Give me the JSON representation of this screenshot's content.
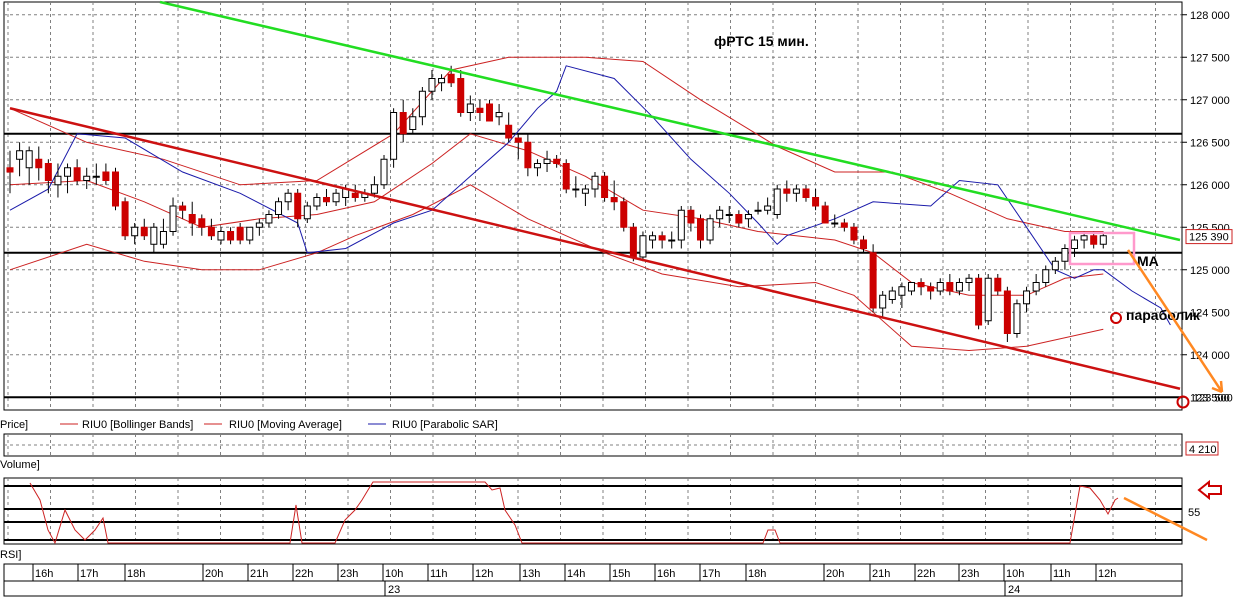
{
  "annotations": {
    "title": "фРТС   15 мин.",
    "ma_label": "МА",
    "parabolic_label": "параболик"
  },
  "legend": {
    "price": "Price]",
    "bollinger": "RIU0 [Bollinger Bands]",
    "moving_average": "RIU0 [Moving Average]",
    "parabolic_sar": "RIU0 [Parabolic SAR]",
    "volume": "Volume]",
    "rsi": "RSI]"
  },
  "colors": {
    "bull_candle": "#ffffff",
    "bear_candle": "#cc0000",
    "bollinger": "#cc2222",
    "moving_average": "#cc2222",
    "parabolic_sar": "#1a1aaa",
    "green_trendline": "#22dd22",
    "red_channel": "#cc1111",
    "forecast_arrow": "#ff8822",
    "highlight_box": "#ff99cc",
    "grid": "#808080"
  },
  "chart_data": [
    {
      "type": "candlestick",
      "name": "price",
      "ylim": [
        123350,
        128150
      ],
      "y_ticks": [
        "128 000",
        "127 500",
        "127 000",
        "126 500",
        "126 000",
        "125 500",
        "125 000",
        "124 500",
        "124 000",
        "123 500"
      ],
      "last_price_label": "125 390",
      "level_label": "123 500",
      "horizontal_levels": [
        126600,
        125200,
        123500
      ],
      "candles": [
        {
          "o": 126200,
          "h": 126400,
          "l": 125900,
          "c": 126150
        },
        {
          "o": 126300,
          "h": 126500,
          "l": 126100,
          "c": 126400
        },
        {
          "o": 126200,
          "h": 126450,
          "l": 126000,
          "c": 126400
        },
        {
          "o": 126300,
          "h": 126450,
          "l": 126050,
          "c": 126200
        },
        {
          "o": 126250,
          "h": 126300,
          "l": 125900,
          "c": 126050
        },
        {
          "o": 126000,
          "h": 126250,
          "l": 125850,
          "c": 126100
        },
        {
          "o": 126100,
          "h": 126250,
          "l": 125900,
          "c": 126200
        },
        {
          "o": 126200,
          "h": 126300,
          "l": 126000,
          "c": 126050
        },
        {
          "o": 126050,
          "h": 126200,
          "l": 125950,
          "c": 126100
        },
        {
          "o": 126100,
          "h": 126250,
          "l": 126000,
          "c": 126100
        },
        {
          "o": 126150,
          "h": 126250,
          "l": 126000,
          "c": 126050
        },
        {
          "o": 126150,
          "h": 126200,
          "l": 125700,
          "c": 125750
        },
        {
          "o": 125800,
          "h": 125850,
          "l": 125350,
          "c": 125400
        },
        {
          "o": 125400,
          "h": 125550,
          "l": 125300,
          "c": 125500
        },
        {
          "o": 125500,
          "h": 125600,
          "l": 125350,
          "c": 125400
        },
        {
          "o": 125300,
          "h": 125550,
          "l": 125200,
          "c": 125500
        },
        {
          "o": 125300,
          "h": 125600,
          "l": 125250,
          "c": 125450
        },
        {
          "o": 125450,
          "h": 125850,
          "l": 125400,
          "c": 125750
        },
        {
          "o": 125750,
          "h": 125800,
          "l": 125600,
          "c": 125700
        },
        {
          "o": 125650,
          "h": 125800,
          "l": 125400,
          "c": 125550
        },
        {
          "o": 125600,
          "h": 125650,
          "l": 125400,
          "c": 125500
        },
        {
          "o": 125500,
          "h": 125600,
          "l": 125350,
          "c": 125400
        },
        {
          "o": 125350,
          "h": 125500,
          "l": 125300,
          "c": 125450
        },
        {
          "o": 125450,
          "h": 125500,
          "l": 125300,
          "c": 125350
        },
        {
          "o": 125500,
          "h": 125550,
          "l": 125300,
          "c": 125350
        },
        {
          "o": 125350,
          "h": 125500,
          "l": 125300,
          "c": 125500
        },
        {
          "o": 125500,
          "h": 125600,
          "l": 125400,
          "c": 125550
        },
        {
          "o": 125550,
          "h": 125700,
          "l": 125500,
          "c": 125650
        },
        {
          "o": 125650,
          "h": 125850,
          "l": 125600,
          "c": 125800
        },
        {
          "o": 125800,
          "h": 125950,
          "l": 125700,
          "c": 125900
        },
        {
          "o": 125900,
          "h": 125950,
          "l": 125500,
          "c": 125600
        },
        {
          "o": 125600,
          "h": 125800,
          "l": 125550,
          "c": 125750
        },
        {
          "o": 125750,
          "h": 125900,
          "l": 125700,
          "c": 125850
        },
        {
          "o": 125850,
          "h": 125950,
          "l": 125750,
          "c": 125800
        },
        {
          "o": 125800,
          "h": 125950,
          "l": 125750,
          "c": 125900
        },
        {
          "o": 125850,
          "h": 126000,
          "l": 125750,
          "c": 125950
        },
        {
          "o": 125900,
          "h": 126000,
          "l": 125800,
          "c": 125850
        },
        {
          "o": 125850,
          "h": 125950,
          "l": 125800,
          "c": 125900
        },
        {
          "o": 125900,
          "h": 126100,
          "l": 125850,
          "c": 126000
        },
        {
          "o": 126000,
          "h": 126350,
          "l": 125950,
          "c": 126300
        },
        {
          "o": 126300,
          "h": 126900,
          "l": 126200,
          "c": 126850
        },
        {
          "o": 126850,
          "h": 127000,
          "l": 126500,
          "c": 126600
        },
        {
          "o": 126650,
          "h": 126900,
          "l": 126600,
          "c": 126800
        },
        {
          "o": 126800,
          "h": 127150,
          "l": 126700,
          "c": 127100
        },
        {
          "o": 127100,
          "h": 127350,
          "l": 127000,
          "c": 127250
        },
        {
          "o": 127200,
          "h": 127300,
          "l": 127100,
          "c": 127250
        },
        {
          "o": 127300,
          "h": 127400,
          "l": 127150,
          "c": 127200
        },
        {
          "o": 127250,
          "h": 127350,
          "l": 126800,
          "c": 126850
        },
        {
          "o": 126850,
          "h": 127050,
          "l": 126750,
          "c": 126950
        },
        {
          "o": 126900,
          "h": 127000,
          "l": 126750,
          "c": 126850
        },
        {
          "o": 126950,
          "h": 127000,
          "l": 126750,
          "c": 126750
        },
        {
          "o": 126800,
          "h": 126950,
          "l": 126700,
          "c": 126850
        },
        {
          "o": 126700,
          "h": 126850,
          "l": 126500,
          "c": 126550
        },
        {
          "o": 126550,
          "h": 126600,
          "l": 126300,
          "c": 126500
        },
        {
          "o": 126500,
          "h": 126600,
          "l": 126100,
          "c": 126200
        },
        {
          "o": 126200,
          "h": 126300,
          "l": 126100,
          "c": 126250
        },
        {
          "o": 126250,
          "h": 126400,
          "l": 126150,
          "c": 126300
        },
        {
          "o": 126300,
          "h": 126350,
          "l": 126200,
          "c": 126250
        },
        {
          "o": 126250,
          "h": 126300,
          "l": 125900,
          "c": 125950
        },
        {
          "o": 125950,
          "h": 126100,
          "l": 125850,
          "c": 125950
        },
        {
          "o": 125900,
          "h": 126000,
          "l": 125750,
          "c": 125950
        },
        {
          "o": 125950,
          "h": 126150,
          "l": 125850,
          "c": 126100
        },
        {
          "o": 126100,
          "h": 126150,
          "l": 125800,
          "c": 125850
        },
        {
          "o": 125850,
          "h": 126050,
          "l": 125700,
          "c": 125800
        },
        {
          "o": 125800,
          "h": 125850,
          "l": 125450,
          "c": 125500
        },
        {
          "o": 125500,
          "h": 125550,
          "l": 125100,
          "c": 125150
        },
        {
          "o": 125150,
          "h": 125450,
          "l": 125100,
          "c": 125400
        },
        {
          "o": 125350,
          "h": 125450,
          "l": 125250,
          "c": 125400
        },
        {
          "o": 125400,
          "h": 125450,
          "l": 125250,
          "c": 125350
        },
        {
          "o": 125350,
          "h": 125450,
          "l": 125250,
          "c": 125350
        },
        {
          "o": 125350,
          "h": 125750,
          "l": 125250,
          "c": 125700
        },
        {
          "o": 125700,
          "h": 125750,
          "l": 125450,
          "c": 125550
        },
        {
          "o": 125600,
          "h": 125650,
          "l": 125250,
          "c": 125350
        },
        {
          "o": 125350,
          "h": 125650,
          "l": 125300,
          "c": 125600
        },
        {
          "o": 125600,
          "h": 125750,
          "l": 125500,
          "c": 125700
        },
        {
          "o": 125650,
          "h": 125750,
          "l": 125550,
          "c": 125650
        },
        {
          "o": 125650,
          "h": 125700,
          "l": 125500,
          "c": 125550
        },
        {
          "o": 125600,
          "h": 125700,
          "l": 125500,
          "c": 125650
        },
        {
          "o": 125700,
          "h": 125800,
          "l": 125650,
          "c": 125700
        },
        {
          "o": 125700,
          "h": 125850,
          "l": 125650,
          "c": 125750
        },
        {
          "o": 125650,
          "h": 126000,
          "l": 125600,
          "c": 125950
        },
        {
          "o": 125950,
          "h": 126050,
          "l": 125800,
          "c": 125900
        },
        {
          "o": 125900,
          "h": 126000,
          "l": 125800,
          "c": 125950
        },
        {
          "o": 125950,
          "h": 126000,
          "l": 125800,
          "c": 125850
        },
        {
          "o": 125850,
          "h": 125950,
          "l": 125700,
          "c": 125750
        },
        {
          "o": 125750,
          "h": 125800,
          "l": 125550,
          "c": 125550
        },
        {
          "o": 125550,
          "h": 125650,
          "l": 125500,
          "c": 125550
        },
        {
          "o": 125550,
          "h": 125600,
          "l": 125450,
          "c": 125500
        },
        {
          "o": 125500,
          "h": 125550,
          "l": 125300,
          "c": 125350
        },
        {
          "o": 125350,
          "h": 125400,
          "l": 125200,
          "c": 125250
        },
        {
          "o": 125200,
          "h": 125300,
          "l": 124500,
          "c": 124550
        },
        {
          "o": 124550,
          "h": 124750,
          "l": 124450,
          "c": 124700
        },
        {
          "o": 124650,
          "h": 124800,
          "l": 124600,
          "c": 124750
        },
        {
          "o": 124700,
          "h": 124850,
          "l": 124550,
          "c": 124800
        },
        {
          "o": 124750,
          "h": 124850,
          "l": 124700,
          "c": 124850
        },
        {
          "o": 124850,
          "h": 124900,
          "l": 124700,
          "c": 124800
        },
        {
          "o": 124800,
          "h": 124850,
          "l": 124650,
          "c": 124750
        },
        {
          "o": 124750,
          "h": 124900,
          "l": 124700,
          "c": 124850
        },
        {
          "o": 124850,
          "h": 124950,
          "l": 124700,
          "c": 124750
        },
        {
          "o": 124750,
          "h": 124900,
          "l": 124700,
          "c": 124850
        },
        {
          "o": 124850,
          "h": 124950,
          "l": 124750,
          "c": 124900
        },
        {
          "o": 124900,
          "h": 124950,
          "l": 124300,
          "c": 124350
        },
        {
          "o": 124400,
          "h": 124950,
          "l": 124350,
          "c": 124900
        },
        {
          "o": 124900,
          "h": 124950,
          "l": 124700,
          "c": 124750
        },
        {
          "o": 124750,
          "h": 124800,
          "l": 124150,
          "c": 124250
        },
        {
          "o": 124250,
          "h": 124650,
          "l": 124200,
          "c": 124600
        },
        {
          "o": 124600,
          "h": 124800,
          "l": 124500,
          "c": 124750
        },
        {
          "o": 124750,
          "h": 124950,
          "l": 124700,
          "c": 124850
        },
        {
          "o": 124850,
          "h": 125050,
          "l": 124800,
          "c": 125000
        },
        {
          "o": 125000,
          "h": 125150,
          "l": 124950,
          "c": 125100
        },
        {
          "o": 125100,
          "h": 125300,
          "l": 125000,
          "c": 125250
        },
        {
          "o": 125250,
          "h": 125400,
          "l": 125150,
          "c": 125350
        },
        {
          "o": 125350,
          "h": 125450,
          "l": 125250,
          "c": 125400
        },
        {
          "o": 125400,
          "h": 125450,
          "l": 125250,
          "c": 125300
        },
        {
          "o": 125300,
          "h": 125450,
          "l": 125250,
          "c": 125400
        }
      ],
      "bollinger_upper": [
        [
          0,
          126900
        ],
        [
          8,
          126500
        ],
        [
          16,
          126300
        ],
        [
          24,
          126000
        ],
        [
          32,
          126050
        ],
        [
          40,
          126600
        ],
        [
          46,
          127350
        ],
        [
          52,
          127500
        ],
        [
          60,
          127500
        ],
        [
          66,
          127450
        ],
        [
          72,
          127000
        ],
        [
          80,
          126450
        ],
        [
          86,
          126150
        ],
        [
          92,
          126150
        ],
        [
          98,
          125900
        ],
        [
          104,
          125600
        ],
        [
          110,
          125450
        ],
        [
          114,
          125450
        ]
      ],
      "bollinger_lower": [
        [
          0,
          125000
        ],
        [
          8,
          125300
        ],
        [
          14,
          125100
        ],
        [
          20,
          125000
        ],
        [
          26,
          125000
        ],
        [
          32,
          125200
        ],
        [
          36,
          125400
        ],
        [
          42,
          125650
        ],
        [
          48,
          126000
        ],
        [
          54,
          125600
        ],
        [
          62,
          125200
        ],
        [
          68,
          124950
        ],
        [
          76,
          124800
        ],
        [
          84,
          124850
        ],
        [
          88,
          124700
        ],
        [
          94,
          124100
        ],
        [
          100,
          124050
        ],
        [
          106,
          124100
        ],
        [
          114,
          124300
        ]
      ],
      "moving_average": [
        [
          0,
          126000
        ],
        [
          8,
          126050
        ],
        [
          14,
          125800
        ],
        [
          20,
          125500
        ],
        [
          26,
          125600
        ],
        [
          32,
          125650
        ],
        [
          38,
          125800
        ],
        [
          44,
          126250
        ],
        [
          48,
          126600
        ],
        [
          54,
          126400
        ],
        [
          60,
          126100
        ],
        [
          66,
          125700
        ],
        [
          72,
          125600
        ],
        [
          78,
          125450
        ],
        [
          86,
          125350
        ],
        [
          90,
          125200
        ],
        [
          94,
          124850
        ],
        [
          100,
          124700
        ],
        [
          106,
          124700
        ],
        [
          110,
          124900
        ],
        [
          114,
          124950
        ]
      ],
      "parabolic_sar": [
        [
          0,
          125700
        ],
        [
          4,
          125950
        ],
        [
          7,
          126600
        ],
        [
          12,
          126550
        ],
        [
          18,
          126150
        ],
        [
          24,
          125900
        ],
        [
          30,
          125550
        ],
        [
          31,
          125200
        ],
        [
          35,
          125250
        ],
        [
          40,
          125550
        ],
        [
          44,
          125700
        ],
        [
          48,
          126100
        ],
        [
          52,
          126500
        ],
        [
          55,
          126900
        ],
        [
          57,
          127100
        ],
        [
          58,
          127400
        ],
        [
          63,
          127250
        ],
        [
          67,
          126800
        ],
        [
          71,
          126300
        ],
        [
          75,
          125900
        ],
        [
          78,
          125550
        ],
        [
          80,
          125300
        ],
        [
          81,
          125400
        ],
        [
          86,
          125600
        ],
        [
          90,
          125800
        ],
        [
          96,
          125750
        ],
        [
          99,
          126050
        ],
        [
          103,
          126000
        ],
        [
          106,
          125500
        ],
        [
          109,
          125000
        ],
        [
          111,
          124900
        ],
        [
          113,
          125000
        ],
        [
          114,
          125000
        ],
        [
          117,
          124750
        ],
        [
          120,
          124550
        ],
        [
          121,
          124350
        ]
      ],
      "green_trendline": [
        [
          0,
          128150
        ],
        [
          122,
          125350
        ]
      ],
      "red_channel": [
        [
          0,
          126900
        ],
        [
          122,
          123600
        ]
      ]
    },
    {
      "type": "bar",
      "name": "volume",
      "last_value_label": "4 210"
    },
    {
      "type": "line",
      "name": "rsi",
      "y_tick": "55",
      "x_labels": [
        "16h",
        "17h",
        "18h",
        "20h",
        "21h",
        "22h",
        "23h",
        "10h",
        "11h",
        "12h",
        "13h",
        "14h",
        "15h",
        "16h",
        "17h",
        "18h",
        "20h",
        "21h",
        "22h",
        "23h",
        "10h",
        "11h",
        "12h"
      ],
      "date_labels": [
        "23",
        "24"
      ]
    }
  ]
}
